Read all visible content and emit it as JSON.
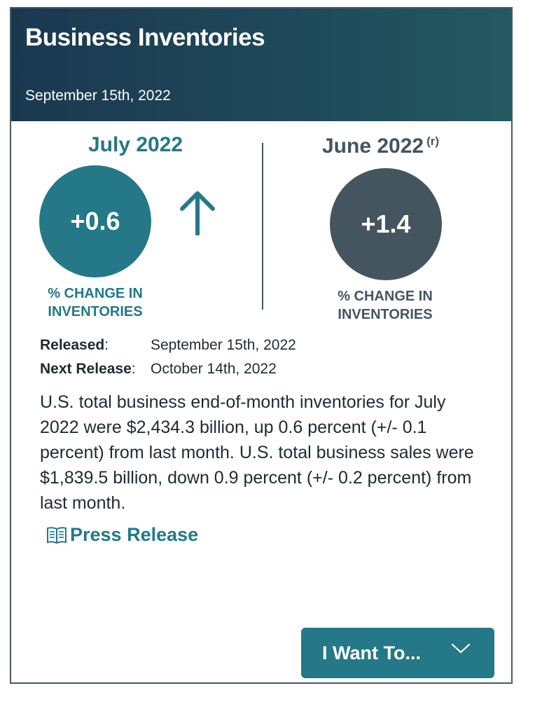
{
  "header": {
    "title": "Business Inventories",
    "date": "September 15th, 2022"
  },
  "current": {
    "period": "July 2022",
    "value": "+0.6",
    "label": "% CHANGE IN INVENTORIES",
    "trend_icon": "arrow-up-icon"
  },
  "previous": {
    "period": "June 2022",
    "revised_mark": "(r)",
    "value": "+1.4",
    "label": "% CHANGE IN INVENTORIES"
  },
  "release": {
    "released_key": "Released",
    "released_value": "September 15th, 2022",
    "next_key": "Next Release",
    "next_value": "October 14th, 2022"
  },
  "summary": "U.S. total business end-of-month inventories for July 2022 were $2,434.3 billion, up 0.6 percent (+/- 0.1 percent) from last month. U.S. total business sales were $1,839.5 billion, down 0.9 percent (+/- 0.2 percent) from last month.",
  "press_release": {
    "label": "Press Release",
    "icon": "book-icon"
  },
  "dropdown": {
    "label": "I Want To...",
    "icon": "chevron-down-icon"
  },
  "colors": {
    "teal": "#257888",
    "slate": "#455560",
    "header_bg": "#1b3850"
  }
}
